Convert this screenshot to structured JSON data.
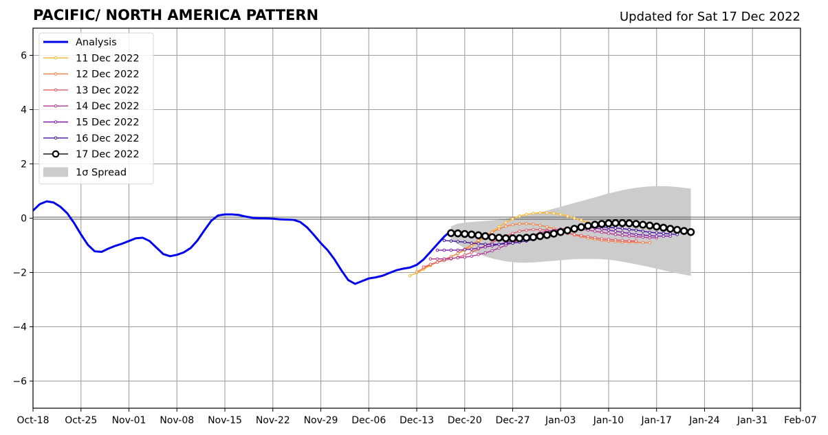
{
  "chart_data": {
    "type": "line",
    "title": "PACIFIC/ NORTH AMERICA PATTERN",
    "subtitle": "Updated for Sat 17 Dec 2022",
    "xlabel": "",
    "ylabel": "",
    "ylim": [
      -7,
      7
    ],
    "xlim": [
      "2022-10-18",
      "2023-02-07"
    ],
    "x_ticks": [
      "Oct-18",
      "Oct-25",
      "Nov-01",
      "Nov-08",
      "Nov-15",
      "Nov-22",
      "Nov-29",
      "Dec-06",
      "Dec-13",
      "Dec-20",
      "Dec-27",
      "Jan-03",
      "Jan-10",
      "Jan-17",
      "Jan-24",
      "Jan-31",
      "Feb-07"
    ],
    "y_ticks": [
      6,
      4,
      2,
      0,
      -2,
      -4,
      -6
    ],
    "y_tick_labels": [
      "6",
      "4",
      "2",
      "0",
      "−2",
      "−4",
      "−6"
    ],
    "grid": true,
    "zero_line": true,
    "legend_position": "top-left",
    "series": [
      {
        "name": "Analysis",
        "color": "#0000ee",
        "style": "thick-line",
        "start": "2022-10-18",
        "values": [
          0.28,
          0.52,
          0.62,
          0.58,
          0.42,
          0.18,
          -0.18,
          -0.6,
          -0.98,
          -1.22,
          -1.24,
          -1.12,
          -1.02,
          -0.94,
          -0.84,
          -0.74,
          -0.72,
          -0.84,
          -1.08,
          -1.32,
          -1.4,
          -1.35,
          -1.26,
          -1.1,
          -0.82,
          -0.45,
          -0.1,
          0.1,
          0.14,
          0.14,
          0.12,
          0.06,
          0.02,
          0.0,
          -0.01,
          -0.02,
          -0.04,
          -0.05,
          -0.06,
          -0.14,
          -0.34,
          -0.62,
          -0.92,
          -1.18,
          -1.52,
          -1.92,
          -2.28,
          -2.42,
          -2.32,
          -2.22,
          -2.18,
          -2.12,
          -2.02,
          -1.92,
          -1.86,
          -1.82,
          -1.72,
          -1.52,
          -1.24,
          -0.96,
          -0.68,
          -0.46
        ]
      },
      {
        "name": "11 Dec 2022",
        "color": "#fdb52e",
        "style": "small-markers",
        "start": "2022-12-12",
        "values": [
          -2.12,
          -2.02,
          -1.88,
          -1.74,
          -1.62,
          -1.52,
          -1.42,
          -1.3,
          -1.18,
          -1.04,
          -0.88,
          -0.7,
          -0.5,
          -0.32,
          -0.16,
          -0.02,
          0.08,
          0.14,
          0.18,
          0.2,
          0.2,
          0.18,
          0.14,
          0.08,
          0.0,
          -0.08,
          -0.16
        ]
      },
      {
        "name": "12 Dec 2022",
        "color": "#f07f43",
        "style": "small-markers",
        "start": "2022-12-13",
        "values": [
          -1.98,
          -1.84,
          -1.72,
          -1.62,
          -1.52,
          -1.42,
          -1.3,
          -1.14,
          -0.98,
          -0.82,
          -0.66,
          -0.52,
          -0.4,
          -0.3,
          -0.24,
          -0.21,
          -0.2,
          -0.22,
          -0.26,
          -0.32,
          -0.38,
          -0.46,
          -0.54,
          -0.62,
          -0.68,
          -0.74,
          -0.78,
          -0.82,
          -0.84,
          -0.86,
          -0.88,
          -0.88,
          -0.88,
          -0.9,
          -0.9
        ]
      },
      {
        "name": "13 Dec 2022",
        "color": "#e05a66",
        "style": "small-markers",
        "start": "2022-12-14",
        "values": [
          -1.8,
          -1.7,
          -1.62,
          -1.56,
          -1.5,
          -1.44,
          -1.36,
          -1.26,
          -1.14,
          -1.02,
          -0.9,
          -0.78,
          -0.66,
          -0.56,
          -0.48,
          -0.44,
          -0.42,
          -0.42,
          -0.44,
          -0.48,
          -0.52,
          -0.56,
          -0.6,
          -0.64,
          -0.68,
          -0.72,
          -0.76,
          -0.78,
          -0.8,
          -0.82,
          -0.84,
          -0.84
        ]
      },
      {
        "name": "14 Dec 2022",
        "color": "#b33594",
        "style": "small-markers",
        "start": "2022-12-15",
        "values": [
          -1.5,
          -1.5,
          -1.5,
          -1.48,
          -1.46,
          -1.44,
          -1.4,
          -1.34,
          -1.28,
          -1.2,
          -1.1,
          -1.0,
          -0.9,
          -0.8,
          -0.7,
          -0.62,
          -0.54,
          -0.48,
          -0.44,
          -0.4,
          -0.38,
          -0.38,
          -0.4,
          -0.44,
          -0.48,
          -0.52,
          -0.56,
          -0.6,
          -0.64,
          -0.66,
          -0.68,
          -0.7,
          -0.72,
          -0.72
        ]
      },
      {
        "name": "15 Dec 2022",
        "color": "#7a18a8",
        "style": "small-markers",
        "start": "2022-12-16",
        "values": [
          -1.18,
          -1.18,
          -1.18,
          -1.18,
          -1.16,
          -1.14,
          -1.1,
          -1.06,
          -1.02,
          -0.96,
          -0.9,
          -0.84,
          -0.78,
          -0.72,
          -0.66,
          -0.6,
          -0.54,
          -0.48,
          -0.44,
          -0.4,
          -0.36,
          -0.34,
          -0.34,
          -0.36,
          -0.4,
          -0.44,
          -0.48,
          -0.52,
          -0.56,
          -0.6,
          -0.62,
          -0.64,
          -0.66,
          -0.66,
          -0.66
        ]
      },
      {
        "name": "16 Dec 2022",
        "color": "#42109a",
        "style": "small-markers",
        "start": "2022-12-17",
        "values": [
          -0.82,
          -0.84,
          -0.86,
          -0.88,
          -0.92,
          -0.94,
          -0.96,
          -0.96,
          -0.96,
          -0.94,
          -0.92,
          -0.88,
          -0.84,
          -0.78,
          -0.72,
          -0.66,
          -0.6,
          -0.54,
          -0.48,
          -0.42,
          -0.38,
          -0.34,
          -0.32,
          -0.32,
          -0.34,
          -0.36,
          -0.38,
          -0.42,
          -0.44,
          -0.48,
          -0.52,
          -0.54,
          -0.56,
          -0.58,
          -0.6
        ]
      },
      {
        "name": "17 Dec 2022",
        "color": "#000000",
        "style": "big-markers",
        "start": "2022-12-18",
        "values": [
          -0.55,
          -0.56,
          -0.58,
          -0.6,
          -0.63,
          -0.66,
          -0.7,
          -0.72,
          -0.74,
          -0.74,
          -0.74,
          -0.72,
          -0.7,
          -0.66,
          -0.62,
          -0.57,
          -0.51,
          -0.45,
          -0.39,
          -0.33,
          -0.28,
          -0.24,
          -0.21,
          -0.19,
          -0.18,
          -0.18,
          -0.19,
          -0.21,
          -0.24,
          -0.27,
          -0.31,
          -0.35,
          -0.39,
          -0.43,
          -0.47,
          -0.51
        ]
      }
    ],
    "spread": {
      "name": "1σ Spread",
      "color": "#cccccc",
      "start": "2022-12-18",
      "upper": [
        -0.3,
        -0.2,
        -0.16,
        -0.14,
        -0.12,
        -0.1,
        -0.08,
        -0.06,
        -0.02,
        0.02,
        0.06,
        0.11,
        0.16,
        0.22,
        0.28,
        0.35,
        0.42,
        0.49,
        0.56,
        0.63,
        0.7,
        0.77,
        0.84,
        0.91,
        0.97,
        1.03,
        1.08,
        1.12,
        1.15,
        1.17,
        1.18,
        1.18,
        1.17,
        1.15,
        1.12,
        1.09
      ],
      "lower": [
        -0.8,
        -0.96,
        -1.1,
        -1.22,
        -1.32,
        -1.41,
        -1.48,
        -1.54,
        -1.59,
        -1.62,
        -1.64,
        -1.64,
        -1.63,
        -1.61,
        -1.59,
        -1.57,
        -1.55,
        -1.53,
        -1.51,
        -1.5,
        -1.5,
        -1.5,
        -1.51,
        -1.53,
        -1.56,
        -1.6,
        -1.65,
        -1.7,
        -1.75,
        -1.8,
        -1.86,
        -1.92,
        -1.98,
        -2.03,
        -2.08,
        -2.12
      ]
    }
  }
}
